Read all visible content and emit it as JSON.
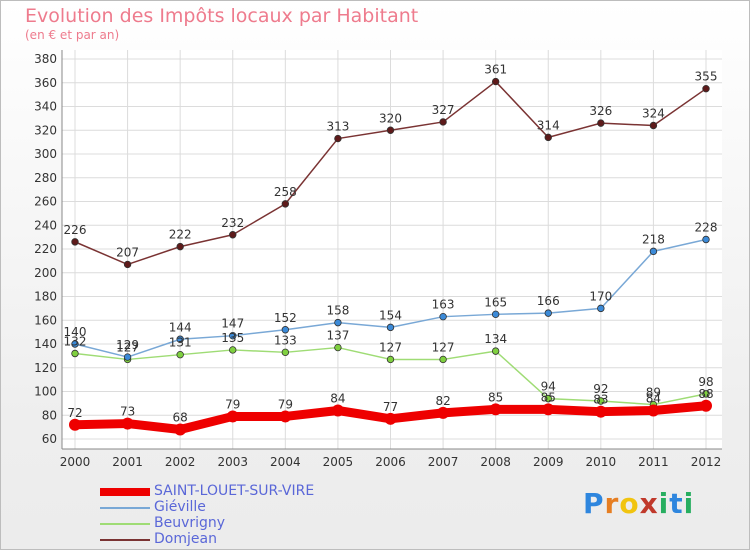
{
  "title": "Evolution des Impôts locaux par Habitant",
  "subtitle": "(en € et par an)",
  "logo": {
    "text": "Proxiti",
    "letters": [
      "P",
      "r",
      "o",
      "x",
      "i",
      "t",
      "i"
    ],
    "colors": [
      "#2e86de",
      "#e67e22",
      "#f1c40f",
      "#c0392b",
      "#27ae60",
      "#2e86de",
      "#27ae60"
    ]
  },
  "chart_data": {
    "type": "line",
    "title": "Evolution des Impôts locaux par Habitant",
    "subtitle": "(en € et par an)",
    "categories": [
      "2000",
      "2001",
      "2002",
      "2003",
      "2004",
      "2005",
      "2006",
      "2007",
      "2008",
      "2009",
      "2010",
      "2011",
      "2012"
    ],
    "ylim": [
      60,
      380
    ],
    "yticks": [
      60,
      80,
      100,
      120,
      140,
      160,
      180,
      200,
      220,
      240,
      260,
      280,
      300,
      320,
      340,
      360,
      380
    ],
    "grid": true,
    "legend": "bottom-left",
    "series": [
      {
        "name": "SAINT-LOUET-SUR-VIRE",
        "color": "#ee0000",
        "thick": true,
        "values": [
          72,
          73,
          68,
          79,
          79,
          84,
          77,
          82,
          85,
          85,
          83,
          84,
          88
        ],
        "labels": [
          "72",
          "73",
          "68",
          "79",
          "79",
          "84",
          "77",
          "82",
          "85",
          "85",
          "83",
          "84",
          "88"
        ]
      },
      {
        "name": "Giéville",
        "color": "#79a8d6",
        "marker": "#3b8ad8",
        "values": [
          140,
          129,
          144,
          147,
          152,
          158,
          154,
          163,
          165,
          166,
          170,
          218,
          228
        ],
        "labels": [
          "140",
          "129",
          "144",
          "147",
          "152",
          "158",
          "154",
          "163",
          "165",
          "166",
          "170",
          "218",
          "228"
        ]
      },
      {
        "name": "Beuvrigny",
        "color": "#9fdc75",
        "marker": "#7fd03f",
        "values": [
          132,
          127,
          131,
          135,
          133,
          137,
          127,
          127,
          134,
          94,
          92,
          89,
          98
        ],
        "labels": [
          "132",
          "127",
          "131",
          "135",
          "133",
          "137",
          "127",
          "127",
          "134",
          "94",
          "92",
          "89",
          "98"
        ]
      },
      {
        "name": "Domjean",
        "color": "#7a3333",
        "marker": "#5e1a1a",
        "values": [
          226,
          207,
          222,
          232,
          258,
          313,
          320,
          327,
          361,
          314,
          326,
          324,
          355
        ],
        "labels": [
          "226",
          "207",
          "222",
          "232",
          "258",
          "313",
          "320",
          "327",
          "361",
          "314",
          "326",
          "324",
          "355"
        ]
      }
    ]
  }
}
